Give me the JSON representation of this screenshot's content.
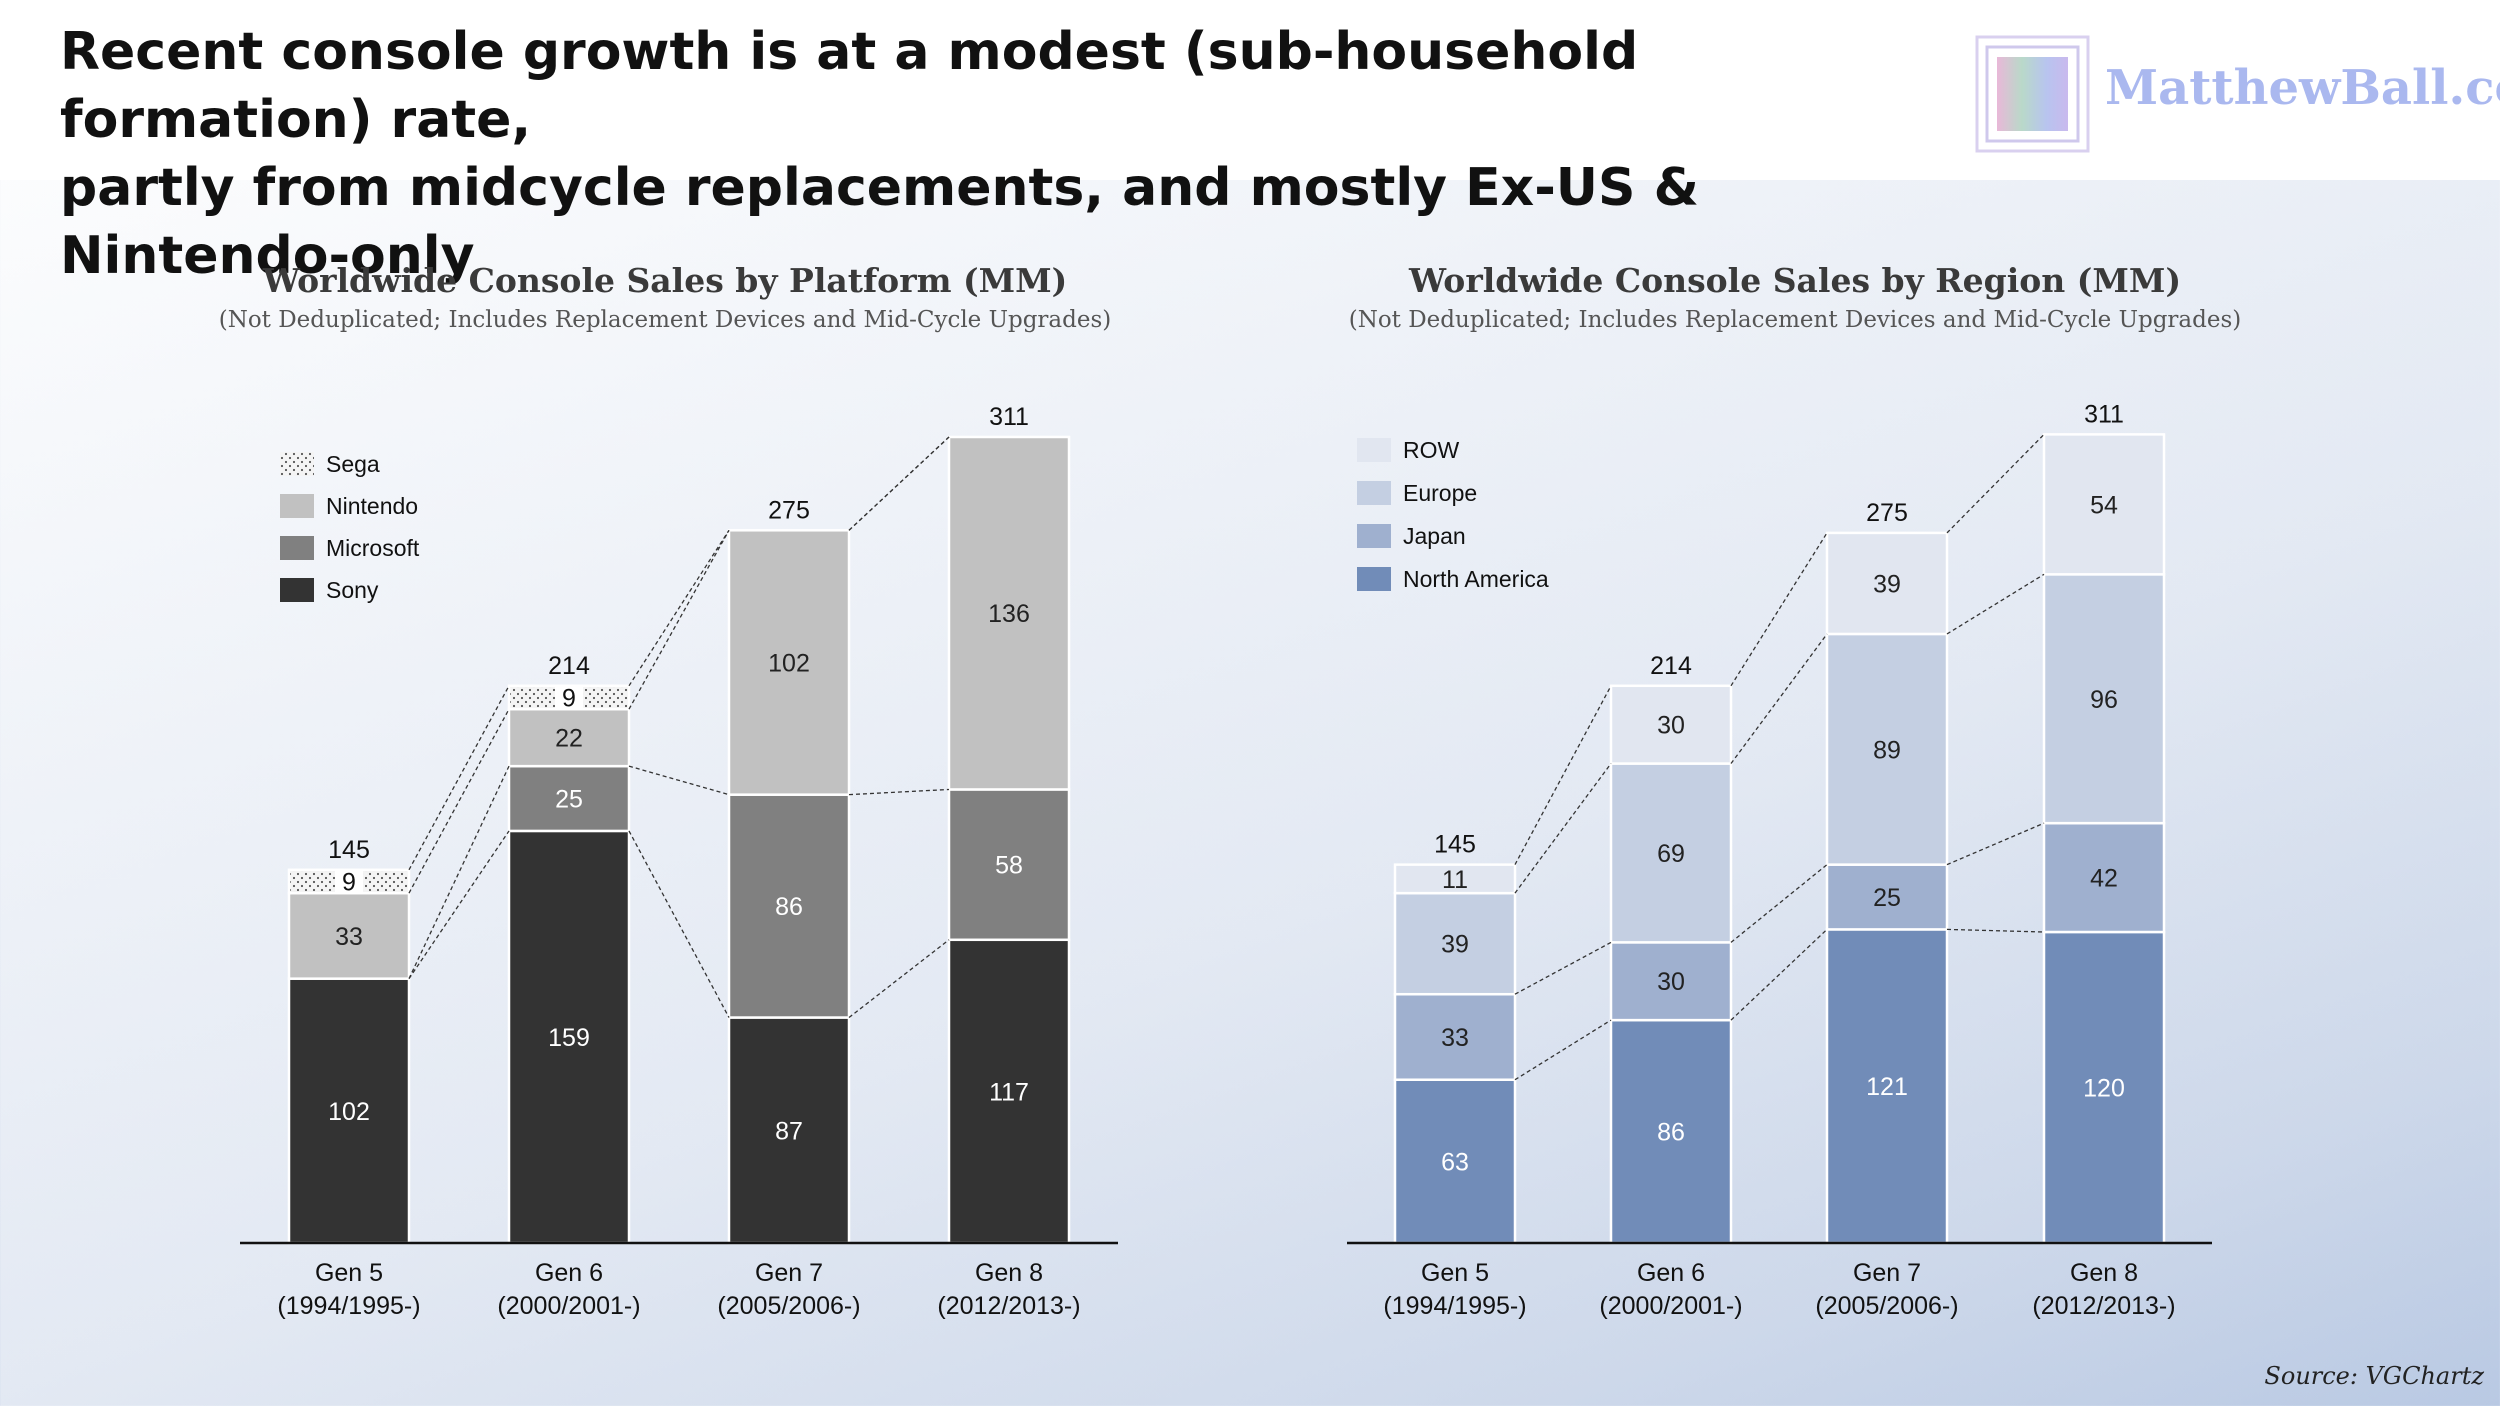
{
  "headline": {
    "line1": "Recent console growth is at a modest (sub-household formation) rate,",
    "line2": "partly from midcycle replacements, and mostly Ex-US & Nintendo-only"
  },
  "brand": {
    "name": "MatthewBall.co"
  },
  "source": "Source: VGChartz",
  "colors": {
    "sony": "#333333",
    "microsoft": "#808080",
    "nintendo": "#c1c1c1",
    "sega": "#f3f3f3",
    "north_america": "#718cb8",
    "japan": "#9fb0cf",
    "europe": "#c4cfe2",
    "row": "#e1e6f0"
  },
  "chart_data": [
    {
      "type": "bar",
      "stacked": true,
      "title": "Worldwide Console Sales by Platform (MM)",
      "subtitle": "(Not Deduplicated; Includes Replacement Devices and Mid-Cycle Upgrades)",
      "categories": [
        [
          "Gen 5",
          "(1994/1995-)"
        ],
        [
          "Gen 6",
          "(2000/2001-)"
        ],
        [
          "Gen 7",
          "(2005/2006-)"
        ],
        [
          "Gen 8",
          "(2012/2013-)"
        ]
      ],
      "series": [
        {
          "name": "Sony",
          "values": [
            102,
            159,
            87,
            117
          ],
          "color": "#333333",
          "label_color": "#ffffff"
        },
        {
          "name": "Microsoft",
          "values": [
            0,
            25,
            86,
            58
          ],
          "color": "#808080",
          "label_color": "#ffffff"
        },
        {
          "name": "Nintendo",
          "values": [
            33,
            22,
            102,
            136
          ],
          "color": "#c1c1c1",
          "label_color": "#222222"
        },
        {
          "name": "Sega",
          "values": [
            9,
            9,
            0,
            0
          ],
          "color": "#f3f3f3",
          "label_color": "#111111",
          "pattern": "dots"
        }
      ],
      "totals": [
        145,
        214,
        275,
        311
      ],
      "legend": {
        "position": "top-left",
        "order": [
          "Sega",
          "Nintendo",
          "Microsoft",
          "Sony"
        ]
      },
      "ylim": [
        0,
        311
      ]
    },
    {
      "type": "bar",
      "stacked": true,
      "title": "Worldwide Console Sales by Region (MM)",
      "subtitle": "(Not Deduplicated; Includes Replacement Devices and Mid-Cycle Upgrades)",
      "categories": [
        [
          "Gen 5",
          "(1994/1995-)"
        ],
        [
          "Gen 6",
          "(2000/2001-)"
        ],
        [
          "Gen 7",
          "(2005/2006-)"
        ],
        [
          "Gen 8",
          "(2012/2013-)"
        ]
      ],
      "series": [
        {
          "name": "North America",
          "values": [
            63,
            86,
            121,
            120
          ],
          "color": "#718cb8",
          "label_color": "#ffffff"
        },
        {
          "name": "Japan",
          "values": [
            33,
            30,
            25,
            42
          ],
          "color": "#9fb0cf",
          "label_color": "#222222"
        },
        {
          "name": "Europe",
          "values": [
            39,
            69,
            89,
            96
          ],
          "color": "#c4cfe2",
          "label_color": "#222222"
        },
        {
          "name": "ROW",
          "values": [
            11,
            30,
            39,
            54
          ],
          "color": "#e1e6f0",
          "label_color": "#222222"
        }
      ],
      "totals": [
        145,
        214,
        275,
        311
      ],
      "legend": {
        "position": "top-left",
        "order": [
          "ROW",
          "Europe",
          "Japan",
          "North America"
        ]
      },
      "ylim": [
        0,
        311
      ]
    }
  ]
}
